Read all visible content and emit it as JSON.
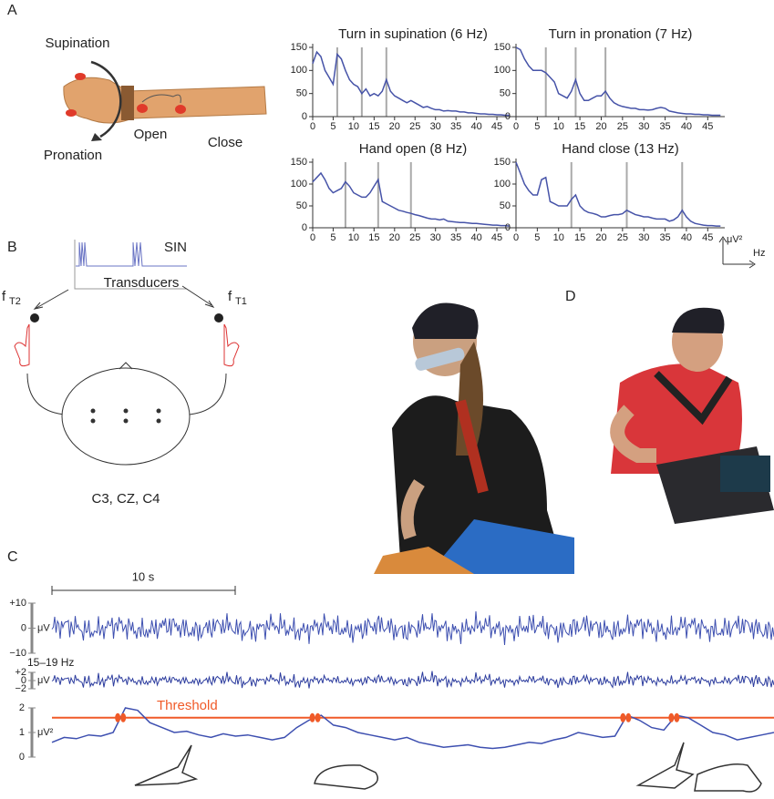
{
  "panel_labels": [
    "A",
    "B",
    "C",
    "D"
  ],
  "panel_a": {
    "arm_labels": {
      "supination": "Supination",
      "pronation": "Pronation",
      "open": "Open",
      "close": "Close"
    },
    "scale_icon": {
      "y_unit": "μV²",
      "x_unit": "Hz"
    }
  },
  "panel_b": {
    "sin": "SIN",
    "transducers": "Transducers",
    "ft2": "f",
    "ft2_sub": "T2",
    "ft1": "f",
    "ft1_sub": "T1",
    "electrodes": "C3, CZ, C4"
  },
  "panel_c": {
    "scale_bar": "10 s",
    "raw": {
      "unit": "μV",
      "ylim": [
        -10,
        10
      ],
      "yticks": [
        {
          "value": 10,
          "label": "+10"
        },
        0,
        {
          "value": -10,
          "label": "−10"
        }
      ]
    },
    "band": {
      "label": "15–19 Hz",
      "unit": "μV",
      "ylim": [
        -2,
        2
      ],
      "yticks": [
        {
          "value": 2,
          "label": "+2"
        },
        0,
        {
          "value": -2,
          "label": "−2"
        }
      ]
    }
  },
  "chart_data": [
    {
      "type": "line",
      "title": "Turn in supination (6 Hz)",
      "markers": [
        6,
        12,
        18
      ],
      "x": [
        0,
        1,
        2,
        3,
        4,
        5,
        6,
        7,
        8,
        9,
        10,
        11,
        12,
        13,
        14,
        15,
        16,
        17,
        18,
        19,
        20,
        21,
        22,
        23,
        24,
        25,
        26,
        27,
        28,
        29,
        30,
        31,
        32,
        33,
        34,
        35,
        36,
        37,
        38,
        39,
        40,
        41,
        42,
        43,
        44,
        45,
        46,
        47,
        48
      ],
      "series": [
        {
          "color": "#4653a8",
          "values": [
            115,
            140,
            130,
            100,
            85,
            70,
            135,
            125,
            100,
            80,
            70,
            65,
            50,
            60,
            45,
            50,
            45,
            55,
            80,
            55,
            45,
            40,
            35,
            30,
            35,
            30,
            25,
            20,
            22,
            18,
            15,
            15,
            12,
            13,
            12,
            12,
            10,
            10,
            8,
            8,
            7,
            6,
            6,
            5,
            5,
            4,
            4,
            3,
            3
          ]
        }
      ],
      "xlim": [
        0,
        49
      ],
      "xticks": [
        0,
        5,
        10,
        15,
        20,
        25,
        30,
        35,
        40,
        45
      ],
      "ylim": [
        0,
        150
      ],
      "yticks": [
        0,
        50,
        100,
        150
      ]
    },
    {
      "type": "line",
      "title": "Turn in pronation (7 Hz)",
      "markers": [
        7,
        14,
        21
      ],
      "x": [
        0,
        1,
        2,
        3,
        4,
        5,
        6,
        7,
        8,
        9,
        10,
        11,
        12,
        13,
        14,
        15,
        16,
        17,
        18,
        19,
        20,
        21,
        22,
        23,
        24,
        25,
        26,
        27,
        28,
        29,
        30,
        31,
        32,
        33,
        34,
        35,
        36,
        37,
        38,
        39,
        40,
        41,
        42,
        43,
        44,
        45,
        46,
        47,
        48
      ],
      "series": [
        {
          "color": "#4653a8",
          "values": [
            150,
            145,
            125,
            110,
            100,
            100,
            100,
            95,
            85,
            75,
            50,
            45,
            40,
            55,
            80,
            50,
            35,
            35,
            40,
            45,
            45,
            55,
            40,
            30,
            25,
            22,
            20,
            18,
            18,
            15,
            15,
            14,
            15,
            18,
            20,
            18,
            12,
            10,
            8,
            7,
            6,
            6,
            5,
            5,
            4,
            4,
            3,
            3,
            3
          ]
        }
      ],
      "xlim": [
        0,
        49
      ],
      "xticks": [
        0,
        5,
        10,
        15,
        20,
        25,
        30,
        35,
        40,
        45
      ],
      "ylim": [
        0,
        150
      ],
      "yticks": [
        0,
        50,
        100,
        150
      ]
    },
    {
      "type": "line",
      "title": "Hand open (8 Hz)",
      "markers": [
        8,
        16,
        24
      ],
      "x": [
        0,
        1,
        2,
        3,
        4,
        5,
        6,
        7,
        8,
        9,
        10,
        11,
        12,
        13,
        14,
        15,
        16,
        17,
        18,
        19,
        20,
        21,
        22,
        23,
        24,
        25,
        26,
        27,
        28,
        29,
        30,
        31,
        32,
        33,
        34,
        35,
        36,
        37,
        38,
        39,
        40,
        41,
        42,
        43,
        44,
        45,
        46,
        47,
        48
      ],
      "series": [
        {
          "color": "#4653a8",
          "values": [
            105,
            115,
            125,
            110,
            90,
            80,
            85,
            90,
            105,
            95,
            80,
            75,
            70,
            70,
            80,
            95,
            110,
            60,
            55,
            50,
            45,
            40,
            38,
            35,
            33,
            30,
            28,
            25,
            22,
            20,
            20,
            18,
            20,
            15,
            14,
            13,
            12,
            12,
            11,
            10,
            10,
            9,
            8,
            7,
            6,
            6,
            5,
            5,
            4
          ]
        }
      ],
      "xlim": [
        0,
        49
      ],
      "xticks": [
        0,
        5,
        10,
        15,
        20,
        25,
        30,
        35,
        40,
        45
      ],
      "ylim": [
        0,
        150
      ],
      "yticks": [
        0,
        50,
        100,
        150
      ]
    },
    {
      "type": "line",
      "title": "Hand close (13 Hz)",
      "markers": [
        13,
        26,
        39
      ],
      "x": [
        0,
        1,
        2,
        3,
        4,
        5,
        6,
        7,
        8,
        9,
        10,
        11,
        12,
        13,
        14,
        15,
        16,
        17,
        18,
        19,
        20,
        21,
        22,
        23,
        24,
        25,
        26,
        27,
        28,
        29,
        30,
        31,
        32,
        33,
        34,
        35,
        36,
        37,
        38,
        39,
        40,
        41,
        42,
        43,
        44,
        45,
        46,
        47,
        48
      ],
      "series": [
        {
          "color": "#4653a8",
          "values": [
            150,
            125,
            100,
            85,
            75,
            75,
            110,
            115,
            60,
            55,
            50,
            50,
            50,
            65,
            75,
            50,
            40,
            35,
            33,
            30,
            25,
            25,
            28,
            30,
            30,
            32,
            40,
            35,
            30,
            28,
            25,
            25,
            22,
            20,
            20,
            20,
            15,
            18,
            25,
            40,
            25,
            15,
            10,
            8,
            6,
            5,
            5,
            4,
            4
          ]
        }
      ],
      "xlim": [
        0,
        49
      ],
      "xticks": [
        0,
        5,
        10,
        15,
        20,
        25,
        30,
        35,
        40,
        45
      ],
      "ylim": [
        0,
        150
      ],
      "yticks": [
        0,
        50,
        100,
        150
      ]
    },
    {
      "type": "trace",
      "color": "#3d4fb0",
      "unit": "μV²",
      "threshold": 1.6,
      "threshold_label": "Threshold",
      "threshold_color": "#f05a28",
      "values": [
        0.6,
        0.8,
        0.75,
        0.9,
        0.85,
        1.0,
        2.0,
        1.9,
        1.4,
        1.2,
        1.0,
        1.05,
        0.9,
        0.8,
        0.95,
        0.85,
        0.9,
        0.8,
        0.7,
        0.8,
        1.2,
        1.5,
        1.7,
        1.3,
        1.2,
        1.0,
        0.9,
        0.8,
        0.7,
        0.8,
        0.6,
        0.5,
        0.4,
        0.45,
        0.5,
        0.4,
        0.35,
        0.4,
        0.5,
        0.6,
        0.55,
        0.7,
        0.8,
        1.0,
        0.9,
        0.8,
        0.85,
        1.7,
        1.5,
        1.2,
        1.1,
        1.7,
        1.6,
        1.3,
        1.0,
        0.9,
        0.7,
        0.8,
        0.9,
        1.0
      ],
      "ylim": [
        0,
        2
      ],
      "yticks": [
        0,
        1,
        2
      ]
    }
  ]
}
